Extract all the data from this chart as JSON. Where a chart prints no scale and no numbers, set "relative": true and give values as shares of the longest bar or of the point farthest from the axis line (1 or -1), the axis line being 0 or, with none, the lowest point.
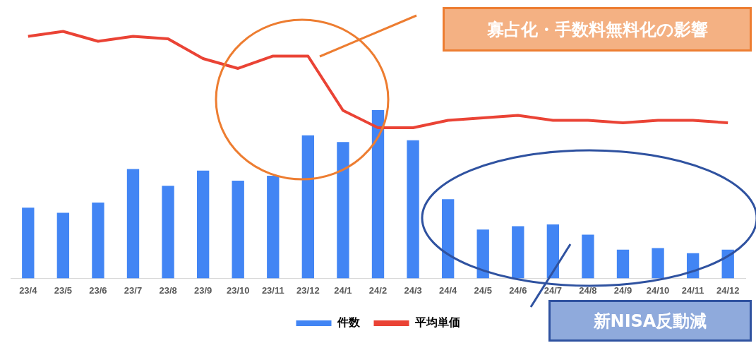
{
  "chart_data": {
    "type": "bar",
    "relative": true,
    "legend": "bottom",
    "categories": [
      "23/4",
      "23/5",
      "23/6",
      "23/7",
      "23/8",
      "23/9",
      "23/10",
      "23/11",
      "23/12",
      "24/1",
      "24/2",
      "24/3",
      "24/4",
      "24/5",
      "24/6",
      "24/7",
      "24/8",
      "24/9",
      "24/10",
      "24/11",
      "24/12"
    ],
    "series": [
      {
        "name": "件数",
        "type": "bar",
        "color": "#4285f4",
        "values": [
          0.42,
          0.39,
          0.45,
          0.65,
          0.55,
          0.64,
          0.58,
          0.61,
          0.85,
          0.81,
          1,
          0.82,
          0.47,
          0.29,
          0.31,
          0.32,
          0.26,
          0.17,
          0.18,
          0.15,
          0.17
        ]
      },
      {
        "name": "平均単価",
        "type": "line",
        "axis": "y2",
        "color": "#ea4335",
        "values": [
          0.98,
          1,
          0.96,
          0.98,
          0.97,
          0.89,
          0.85,
          0.9,
          0.9,
          0.68,
          0.61,
          0.61,
          0.64,
          0.65,
          0.66,
          0.64,
          0.64,
          0.63,
          0.64,
          0.64,
          0.63
        ]
      }
    ],
    "annotations": [
      "寡占化・手数料無料化の影響",
      "新NISA反動減"
    ]
  }
}
